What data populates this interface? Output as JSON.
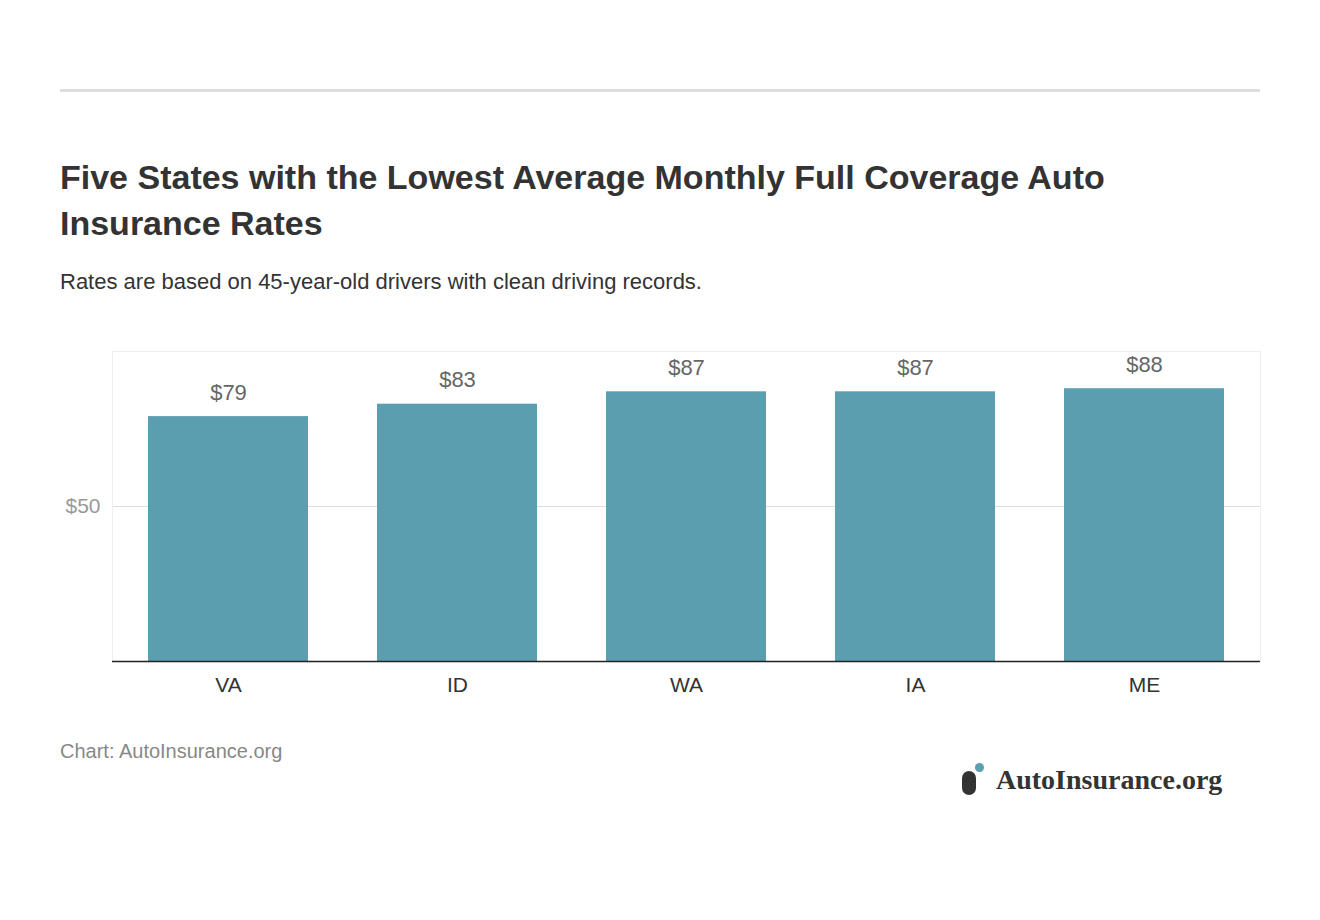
{
  "chart_data": {
    "type": "bar",
    "title": "Five States with the Lowest Average Monthly Full Coverage Auto Insurance Rates",
    "subtitle": "Rates are based on 45-year-old drivers with clean driving records.",
    "caption": "Chart: AutoInsurance.org",
    "logo_text": "AutoInsurance.org",
    "categories": [
      "VA",
      "ID",
      "WA",
      "IA",
      "ME"
    ],
    "values": [
      79,
      83,
      87,
      87,
      88
    ],
    "value_labels": [
      "$79",
      "$83",
      "$87",
      "$87",
      "$88"
    ],
    "data_labels": true,
    "color": "#5b9eb0",
    "ylim": [
      0,
      100
    ],
    "yticks": [
      {
        "value": 50,
        "label": "$50"
      }
    ],
    "grid": true
  }
}
